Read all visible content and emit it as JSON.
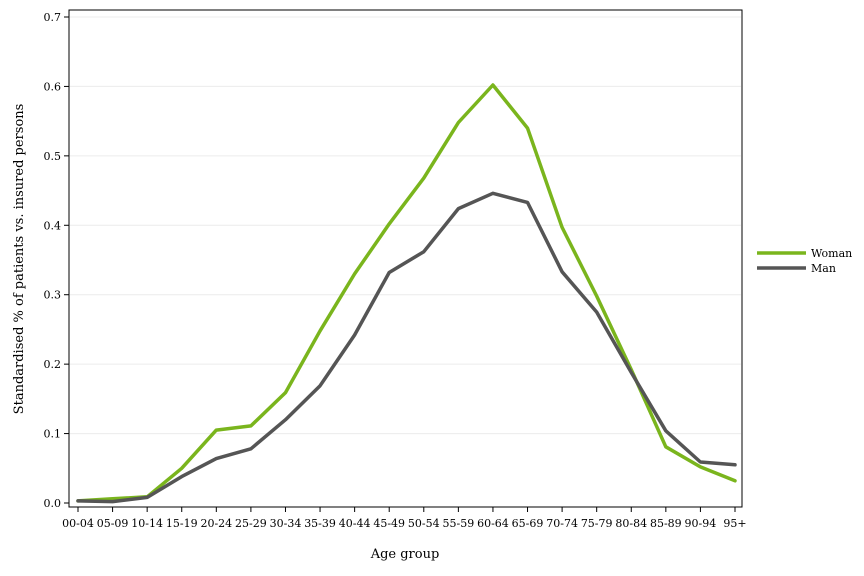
{
  "chart_data": {
    "type": "line",
    "title": "",
    "xlabel": "Age group",
    "ylabel": "Standardised % of patients vs. insured persons",
    "categories": [
      "00-04",
      "05-09",
      "10-14",
      "15-19",
      "20-24",
      "25-29",
      "30-34",
      "35-39",
      "40-44",
      "45-49",
      "50-54",
      "55-59",
      "60-64",
      "65-69",
      "70-74",
      "75-79",
      "80-84",
      "85-89",
      "90-94",
      "95+"
    ],
    "ylim": [
      0,
      0.7
    ],
    "yticks": [
      "0.0",
      "0.1",
      "0.2",
      "0.3",
      "0.4",
      "0.5",
      "0.6",
      "0.7"
    ],
    "grid": true,
    "legend_position": "right",
    "series": [
      {
        "name": "Woman",
        "color": "#7ab51d",
        "values": [
          0.003,
          0.006,
          0.009,
          0.05,
          0.105,
          0.111,
          0.159,
          0.248,
          0.33,
          0.402,
          0.468,
          0.548,
          0.602,
          0.54,
          0.397,
          0.298,
          0.192,
          0.081,
          0.052,
          0.032
        ]
      },
      {
        "name": "Man",
        "color": "#555555",
        "values": [
          0.003,
          0.002,
          0.008,
          0.038,
          0.064,
          0.078,
          0.12,
          0.169,
          0.242,
          0.332,
          0.362,
          0.424,
          0.446,
          0.433,
          0.333,
          0.275,
          0.188,
          0.104,
          0.059,
          0.055
        ]
      }
    ]
  }
}
